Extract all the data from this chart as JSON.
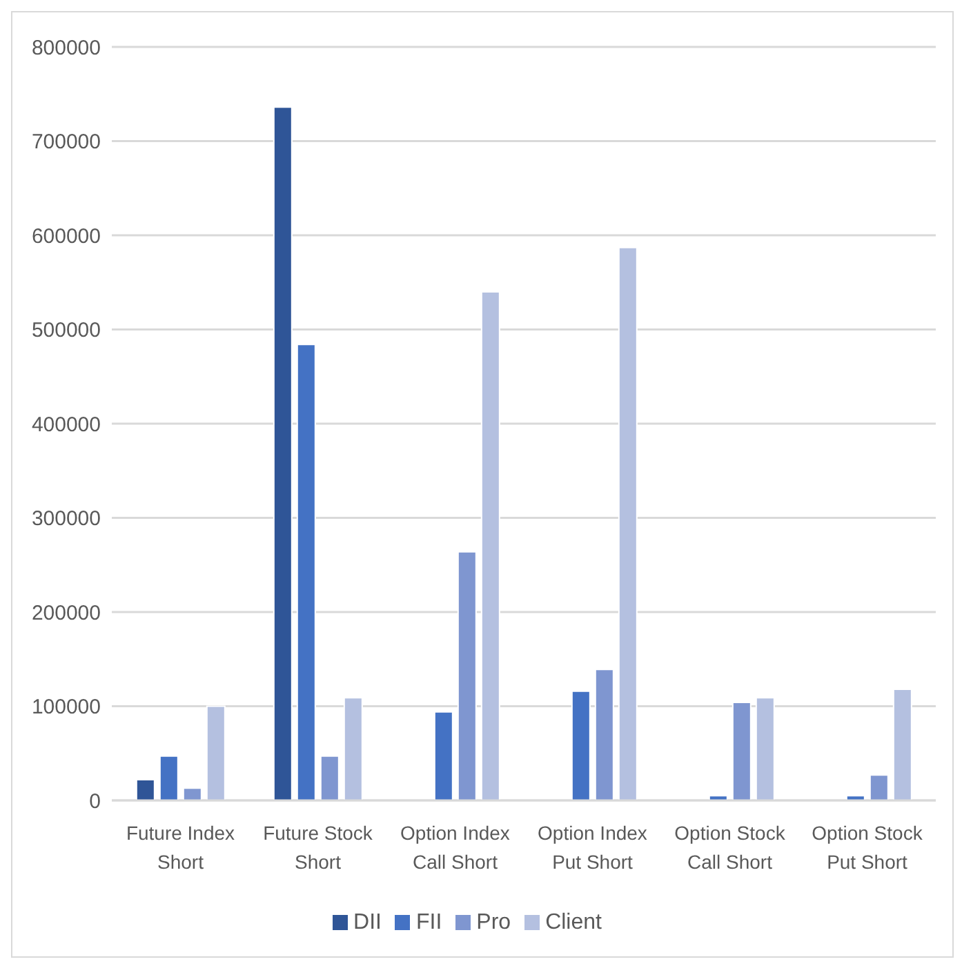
{
  "chart_data": {
    "type": "bar",
    "categories": [
      "Future Index Short",
      "Future Stock Short",
      "Option Index Call Short",
      "Option Index Put Short",
      "Option Stock Call Short",
      "Option Stock Put Short"
    ],
    "series": [
      {
        "name": "DII",
        "color": "#2f5597",
        "values": [
          22000,
          736000,
          0,
          0,
          0,
          0
        ]
      },
      {
        "name": "FII",
        "color": "#4472c4",
        "values": [
          47000,
          484000,
          94000,
          116000,
          5000,
          5000
        ]
      },
      {
        "name": "Pro",
        "color": "#7f96d0",
        "values": [
          13000,
          47000,
          264000,
          139000,
          104000,
          27000
        ]
      },
      {
        "name": "Client",
        "color": "#b4c0e0",
        "values": [
          100000,
          109000,
          540000,
          587000,
          109000,
          118000
        ]
      }
    ],
    "ylim": [
      0,
      800000
    ],
    "yticks": [
      0,
      100000,
      200000,
      300000,
      400000,
      500000,
      600000,
      700000,
      800000
    ],
    "grid": "y",
    "legend": "bottom"
  }
}
